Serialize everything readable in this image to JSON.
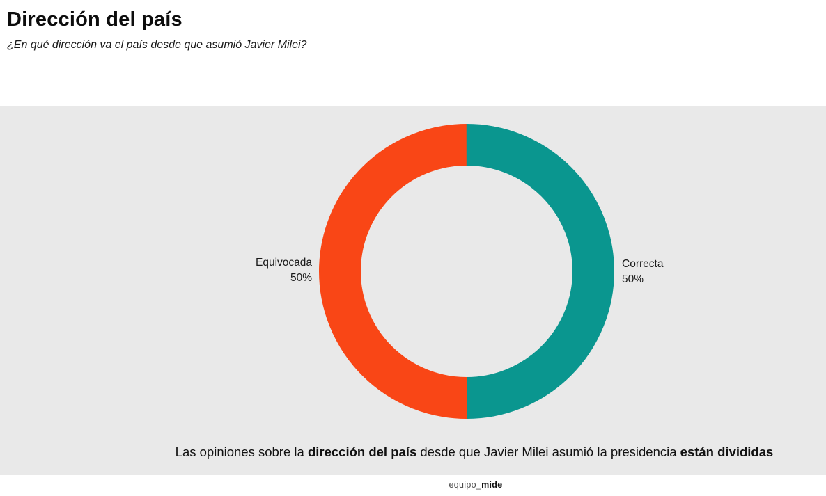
{
  "header": {
    "title": "Dirección del país",
    "subtitle": "¿En qué dirección va el país desde que asumió Javier Milei?"
  },
  "chart_data": {
    "type": "pie",
    "donut": true,
    "title": "Dirección del país",
    "subtitle": "¿En qué dirección va el país desde que asumió Javier Milei?",
    "categories": [
      "Equivocada",
      "Correcta"
    ],
    "values": [
      50,
      50
    ],
    "unit": "%",
    "slices": [
      {
        "label": "Equivocada",
        "value": 50,
        "pct_label": "50%",
        "color": "#F94616",
        "side": "left"
      },
      {
        "label": "Correcta",
        "value": 50,
        "pct_label": "50%",
        "color": "#0A968F",
        "side": "right"
      }
    ],
    "panel_background": "#E9E9E9",
    "legend_position": "side-callout-labels"
  },
  "caption": {
    "segments": [
      {
        "text": "Las opiniones sobre la ",
        "bold": false
      },
      {
        "text": "dirección del país",
        "bold": true
      },
      {
        "text": " desde que Javier Milei asumió la presidencia ",
        "bold": false
      },
      {
        "text": "están divididas",
        "bold": true
      }
    ]
  },
  "footer": {
    "segments": [
      {
        "text": "equipo_",
        "bold": false
      },
      {
        "text": "mide",
        "bold": true
      }
    ]
  }
}
